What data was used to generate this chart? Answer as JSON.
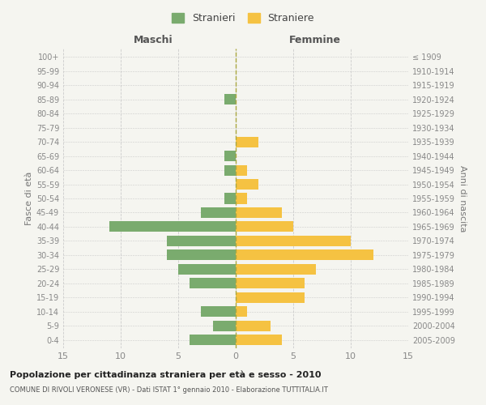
{
  "age_groups": [
    "100+",
    "95-99",
    "90-94",
    "85-89",
    "80-84",
    "75-79",
    "70-74",
    "65-69",
    "60-64",
    "55-59",
    "50-54",
    "45-49",
    "40-44",
    "35-39",
    "30-34",
    "25-29",
    "20-24",
    "15-19",
    "10-14",
    "5-9",
    "0-4"
  ],
  "birth_years": [
    "≤ 1909",
    "1910-1914",
    "1915-1919",
    "1920-1924",
    "1925-1929",
    "1930-1934",
    "1935-1939",
    "1940-1944",
    "1945-1949",
    "1950-1954",
    "1955-1959",
    "1960-1964",
    "1965-1969",
    "1970-1974",
    "1975-1979",
    "1980-1984",
    "1985-1989",
    "1990-1994",
    "1995-1999",
    "2000-2004",
    "2005-2009"
  ],
  "males": [
    0,
    0,
    0,
    1,
    0,
    0,
    0,
    1,
    1,
    0,
    1,
    3,
    11,
    6,
    6,
    5,
    4,
    0,
    3,
    2,
    4
  ],
  "females": [
    0,
    0,
    0,
    0,
    0,
    0,
    2,
    0,
    1,
    2,
    1,
    4,
    5,
    10,
    12,
    7,
    6,
    6,
    1,
    3,
    4
  ],
  "male_color": "#7aab6e",
  "female_color": "#f5c242",
  "title": "Popolazione per cittadinanza straniera per età e sesso - 2010",
  "subtitle": "COMUNE DI RIVOLI VERONESE (VR) - Dati ISTAT 1° gennaio 2010 - Elaborazione TUTTITALIA.IT",
  "ylabel_left": "Fasce di età",
  "ylabel_right": "Anni di nascita",
  "xlabel_left": "Maschi",
  "xlabel_right": "Femmine",
  "legend_male": "Stranieri",
  "legend_female": "Straniere",
  "xlim": 15,
  "bg_color": "#f5f5f0",
  "grid_color": "#cccccc",
  "bar_height": 0.75
}
